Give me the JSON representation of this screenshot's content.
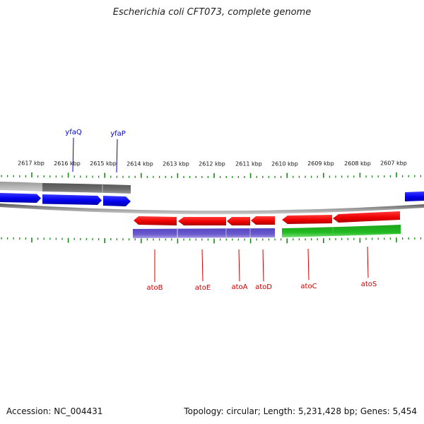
{
  "title": "Escherichia coli CFT073, complete genome",
  "footer": {
    "accession": "Accession: NC_004431",
    "summary": "Topology: circular; Length: 5,231,428 bp; Genes: 5,454"
  },
  "colors": {
    "tick": "#1a8a1a",
    "backbone": "#8c8c8c",
    "forward_gene": "#0000ee",
    "reverse_gene": "#ee0000",
    "gene_label_top": "#0000cc",
    "gene_label_bottom": "#cc0000",
    "grey_band": "#6e6e6e",
    "purple_band": "#6a5acd",
    "green_band": "#22bb22"
  },
  "scale": {
    "unit": "kbp",
    "labels": [
      "2617 kbp",
      "2616 kbp",
      "2615 kbp",
      "2614 kbp",
      "2613 kbp",
      "2612 kbp",
      "2611 kbp",
      "2610 kbp",
      "2609 kbp",
      "2608 kbp",
      "2607 kbp"
    ]
  },
  "genes_top": [
    {
      "name": "yfaQ"
    },
    {
      "name": "yfaP"
    }
  ],
  "genes_bottom": [
    {
      "name": "atoB"
    },
    {
      "name": "atoE"
    },
    {
      "name": "atoA"
    },
    {
      "name": "atoD"
    },
    {
      "name": "atoC"
    },
    {
      "name": "atoS"
    }
  ]
}
